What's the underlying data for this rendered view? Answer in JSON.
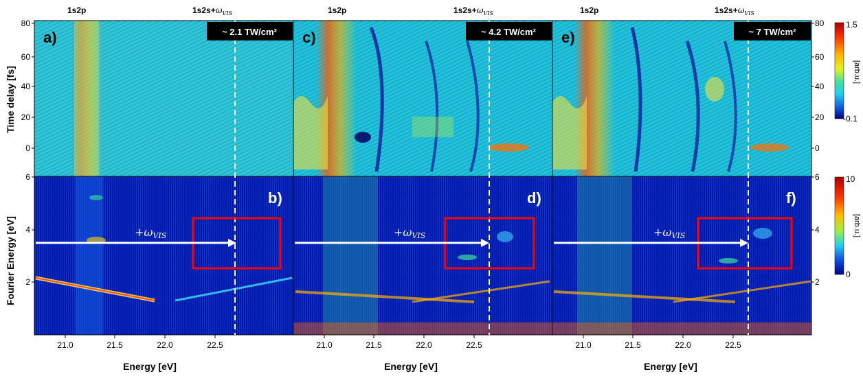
{
  "figure": {
    "state_labels": {
      "resonance": "1s2p",
      "sideband": "1s2s+",
      "sideband_sub": "VIS"
    },
    "omega_symbol": "ω",
    "arrow_label": {
      "prefix": "+ω",
      "sub": "VIS"
    },
    "panels": [
      {
        "letter": "a)",
        "intensity": "~ 2.1 TW/cm²"
      },
      {
        "letter": "c)",
        "intensity": "~ 4.2 TW/cm²"
      },
      {
        "letter": "e)",
        "intensity": "~ 7 TW/cm²"
      }
    ],
    "bottom_panels": [
      {
        "letter": "b)"
      },
      {
        "letter": "d)"
      },
      {
        "letter": "f)"
      }
    ],
    "axes": {
      "x_label": "Energy [eV]",
      "x_ticks": [
        "21.0",
        "21.5",
        "22.0",
        "22.5"
      ],
      "y_top_label": "Time delay [fs]",
      "y_top_ticks": [
        "0",
        "20",
        "40",
        "60",
        "80"
      ],
      "y_bottom_label": "Fourier Energy [eV]",
      "y_bottom_ticks": [
        "2",
        "4",
        "6"
      ],
      "right_top_ticks": [
        "0",
        "20",
        "40",
        "60",
        "80"
      ],
      "right_bottom_ticks": [
        "2",
        "4",
        "6"
      ]
    },
    "colorbars": {
      "top": {
        "max": "1.5",
        "min": "-0.1",
        "unit": "[arb.u.]"
      },
      "bottom": {
        "max": "10",
        "min": "0",
        "unit": "[arb.u.]"
      }
    }
  }
}
